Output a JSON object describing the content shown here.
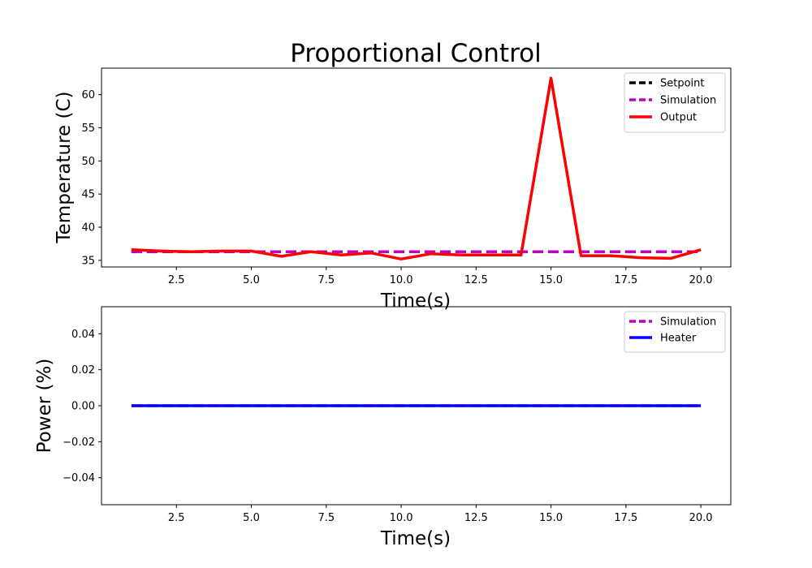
{
  "chart_data": [
    {
      "type": "line",
      "title": "Proportional Control",
      "xlabel": "Time(s)",
      "ylabel": "Temperature (C)",
      "xlim": [
        0,
        21
      ],
      "ylim": [
        34,
        64
      ],
      "xticks": [
        2.5,
        5.0,
        7.5,
        10.0,
        12.5,
        15.0,
        17.5,
        20.0
      ],
      "xtick_labels": [
        "2.5",
        "5.0",
        "7.5",
        "10.0",
        "12.5",
        "15.0",
        "17.5",
        "20.0"
      ],
      "yticks": [
        35,
        40,
        45,
        50,
        55,
        60
      ],
      "ytick_labels": [
        "35",
        "40",
        "45",
        "50",
        "55",
        "60"
      ],
      "legend_position": "top-right",
      "grid": false,
      "series": [
        {
          "name": "Setpoint",
          "color": "#000000",
          "style": "dashed",
          "x": [
            1,
            2,
            3,
            4,
            5,
            6,
            7,
            8,
            9,
            10,
            11,
            12,
            13,
            14,
            15,
            16,
            17,
            18,
            19,
            20
          ],
          "y": [
            36.3,
            36.3,
            36.3,
            36.3,
            36.3,
            36.3,
            36.3,
            36.3,
            36.3,
            36.3,
            36.3,
            36.3,
            36.3,
            36.3,
            36.3,
            36.3,
            36.3,
            36.3,
            36.3,
            36.3
          ]
        },
        {
          "name": "Simulation",
          "color": "#bf00bf",
          "style": "dashed",
          "x": [
            1,
            2,
            3,
            4,
            5,
            6,
            7,
            8,
            9,
            10,
            11,
            12,
            13,
            14,
            15,
            16,
            17,
            18,
            19,
            20
          ],
          "y": [
            36.3,
            36.3,
            36.3,
            36.3,
            36.3,
            36.3,
            36.3,
            36.3,
            36.3,
            36.3,
            36.3,
            36.3,
            36.3,
            36.3,
            36.3,
            36.3,
            36.3,
            36.3,
            36.3,
            36.3
          ]
        },
        {
          "name": "Output",
          "color": "#ff0000",
          "style": "solid",
          "x": [
            1,
            2,
            3,
            4,
            5,
            6,
            7,
            8,
            9,
            10,
            11,
            12,
            13,
            14,
            15,
            16,
            17,
            18,
            19,
            20
          ],
          "y": [
            36.6,
            36.4,
            36.3,
            36.4,
            36.4,
            35.6,
            36.3,
            35.8,
            36.1,
            35.2,
            36.0,
            35.8,
            35.8,
            35.8,
            62.5,
            35.7,
            35.7,
            35.4,
            35.3,
            36.6
          ]
        }
      ]
    },
    {
      "type": "line",
      "title": "",
      "xlabel": "Time(s)",
      "ylabel": "Power (%)",
      "xlim": [
        0,
        21
      ],
      "ylim": [
        -0.055,
        0.055
      ],
      "xticks": [
        2.5,
        5.0,
        7.5,
        10.0,
        12.5,
        15.0,
        17.5,
        20.0
      ],
      "xtick_labels": [
        "2.5",
        "5.0",
        "7.5",
        "10.0",
        "12.5",
        "15.0",
        "17.5",
        "20.0"
      ],
      "yticks": [
        -0.04,
        -0.02,
        0.0,
        0.02,
        0.04
      ],
      "ytick_labels": [
        "−0.04",
        "−0.02",
        "0.00",
        "0.02",
        "0.04"
      ],
      "legend_position": "top-right",
      "grid": false,
      "series": [
        {
          "name": "Simulation",
          "color": "#bf00bf",
          "style": "dashed",
          "x": [
            1,
            2,
            3,
            4,
            5,
            6,
            7,
            8,
            9,
            10,
            11,
            12,
            13,
            14,
            15,
            16,
            17,
            18,
            19,
            20
          ],
          "y": [
            0,
            0,
            0,
            0,
            0,
            0,
            0,
            0,
            0,
            0,
            0,
            0,
            0,
            0,
            0,
            0,
            0,
            0,
            0,
            0
          ]
        },
        {
          "name": "Heater",
          "color": "#0000ff",
          "style": "solid",
          "x": [
            1,
            2,
            3,
            4,
            5,
            6,
            7,
            8,
            9,
            10,
            11,
            12,
            13,
            14,
            15,
            16,
            17,
            18,
            19,
            20
          ],
          "y": [
            0,
            0,
            0,
            0,
            0,
            0,
            0,
            0,
            0,
            0,
            0,
            0,
            0,
            0,
            0,
            0,
            0,
            0,
            0,
            0
          ]
        }
      ]
    }
  ]
}
